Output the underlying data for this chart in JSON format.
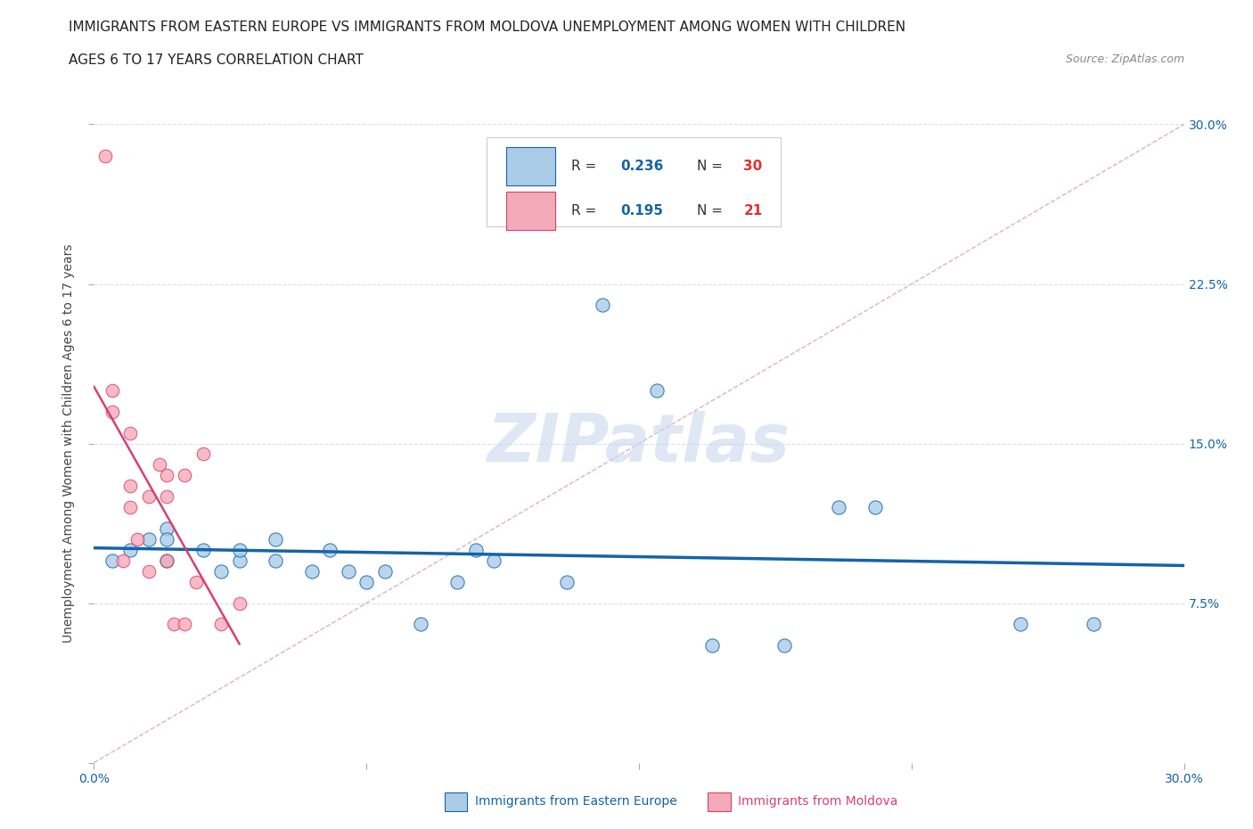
{
  "title_line1": "IMMIGRANTS FROM EASTERN EUROPE VS IMMIGRANTS FROM MOLDOVA UNEMPLOYMENT AMONG WOMEN WITH CHILDREN",
  "title_line2": "AGES 6 TO 17 YEARS CORRELATION CHART",
  "source": "Source: ZipAtlas.com",
  "ylabel": "Unemployment Among Women with Children Ages 6 to 17 years",
  "xlim": [
    0.0,
    0.3
  ],
  "ylim": [
    0.0,
    0.3
  ],
  "blue_R": 0.236,
  "blue_N": 30,
  "pink_R": 0.195,
  "pink_N": 21,
  "blue_color": "#aacce8",
  "pink_color": "#f4aab8",
  "blue_line_color": "#1464a8",
  "pink_line_color": "#d84070",
  "diagonal_color": "#e0b0c0",
  "background_color": "#ffffff",
  "grid_color": "#d8e0ec",
  "watermark_color": "#c8d8ec",
  "legend_R_color": "#1464a8",
  "legend_N_color": "#e03030",
  "blue_x": [
    0.005,
    0.01,
    0.015,
    0.02,
    0.02,
    0.02,
    0.03,
    0.035,
    0.04,
    0.04,
    0.05,
    0.05,
    0.06,
    0.065,
    0.07,
    0.075,
    0.08,
    0.09,
    0.1,
    0.105,
    0.11,
    0.13,
    0.14,
    0.155,
    0.17,
    0.19,
    0.205,
    0.215,
    0.255,
    0.275
  ],
  "blue_y": [
    0.095,
    0.1,
    0.105,
    0.11,
    0.095,
    0.105,
    0.1,
    0.09,
    0.095,
    0.1,
    0.105,
    0.095,
    0.09,
    0.1,
    0.09,
    0.085,
    0.09,
    0.065,
    0.085,
    0.1,
    0.095,
    0.085,
    0.215,
    0.175,
    0.055,
    0.055,
    0.12,
    0.12,
    0.065,
    0.065
  ],
  "pink_x": [
    0.003,
    0.005,
    0.005,
    0.008,
    0.01,
    0.01,
    0.01,
    0.012,
    0.015,
    0.015,
    0.018,
    0.02,
    0.02,
    0.02,
    0.022,
    0.025,
    0.025,
    0.028,
    0.03,
    0.035,
    0.04
  ],
  "pink_y": [
    0.285,
    0.175,
    0.165,
    0.095,
    0.155,
    0.13,
    0.12,
    0.105,
    0.125,
    0.09,
    0.14,
    0.135,
    0.125,
    0.095,
    0.065,
    0.135,
    0.065,
    0.085,
    0.145,
    0.065,
    0.075
  ]
}
